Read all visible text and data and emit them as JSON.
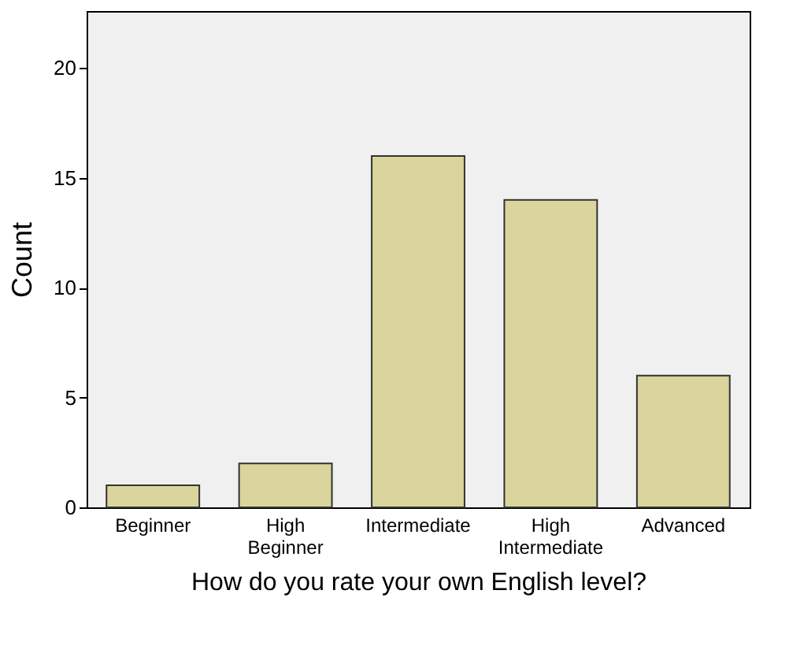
{
  "chart_data": {
    "type": "bar",
    "xlabel": "How do you rate your own English level?",
    "ylabel": "Count",
    "categories": [
      "Beginner",
      "High Beginner",
      "Intermediate",
      "High Intermediate",
      "Advanced"
    ],
    "values": [
      1,
      2,
      16,
      14,
      6
    ],
    "color": "#d9d59c",
    "ylim": [
      0,
      22.6
    ],
    "yticks": [
      0,
      5,
      10,
      15,
      20
    ],
    "grid": false
  }
}
